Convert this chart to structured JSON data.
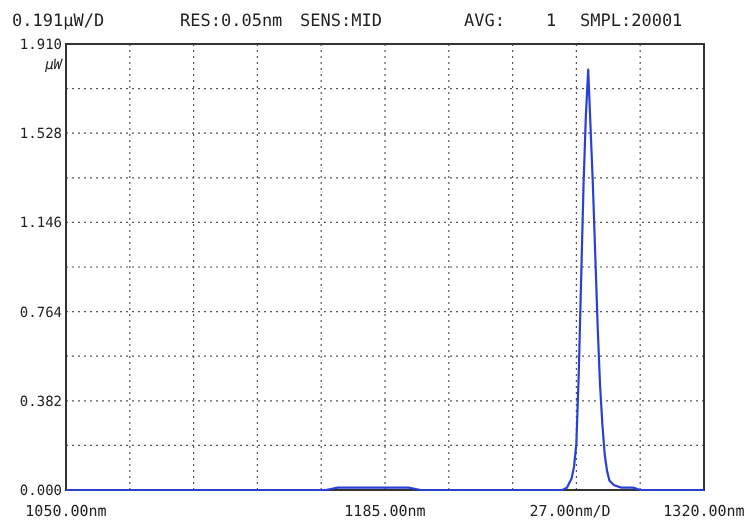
{
  "chart_data": {
    "type": "line",
    "ylabel": "µW",
    "xlabel": "27.00nm/D",
    "annotations": [
      "0.191µW/D",
      "RES:0.05nm",
      "SENS:MID",
      "AVG:    1",
      "SMPL:20001"
    ],
    "series": [
      {
        "color": "#2a3fd6",
        "x": [
          1050,
          1100,
          1150,
          1160,
          1165,
          1175,
          1185,
          1195,
          1200,
          1210,
          1250,
          1260,
          1262,
          1264,
          1265,
          1266,
          1267,
          1268,
          1269,
          1270,
          1271,
          1272,
          1273,
          1274,
          1275,
          1276,
          1277,
          1278,
          1279,
          1280,
          1282,
          1285,
          1290,
          1293,
          1300,
          1320
        ],
        "values": [
          0,
          0,
          0,
          0,
          0.01,
          0.01,
          0.01,
          0.01,
          0,
          0,
          0,
          0,
          0.01,
          0.05,
          0.1,
          0.2,
          0.5,
          0.9,
          1.3,
          1.6,
          1.8,
          1.55,
          1.3,
          1.0,
          0.7,
          0.45,
          0.28,
          0.15,
          0.08,
          0.04,
          0.02,
          0.01,
          0.01,
          0,
          0,
          0
        ]
      }
    ],
    "xlim": [
      1050,
      1320
    ],
    "xticks": [
      {
        "value": 1050,
        "label": "1050.00nm"
      },
      {
        "value": 1077,
        "label": null
      },
      {
        "value": 1104,
        "label": null
      },
      {
        "value": 1131,
        "label": null
      },
      {
        "value": 1158,
        "label": null
      },
      {
        "value": 1185,
        "label": "1185.00nm"
      },
      {
        "value": 1212,
        "label": null
      },
      {
        "value": 1239,
        "label": null
      },
      {
        "value": 1266,
        "label": null
      },
      {
        "value": 1293,
        "label": null
      },
      {
        "value": 1320,
        "label": "1320.00nm"
      }
    ],
    "ylim": [
      0,
      1.91
    ],
    "yticks": [
      {
        "value": 0,
        "label": "0.000"
      },
      {
        "value": 0.191,
        "label": null
      },
      {
        "value": 0.382,
        "label": "0.382"
      },
      {
        "value": 0.573,
        "label": null
      },
      {
        "value": 0.764,
        "label": "0.764"
      },
      {
        "value": 0.955,
        "label": null
      },
      {
        "value": 1.146,
        "label": "1.146"
      },
      {
        "value": 1.337,
        "label": null
      },
      {
        "value": 1.528,
        "label": "1.528"
      },
      {
        "value": 1.719,
        "label": null
      },
      {
        "value": 1.91,
        "label": "1.910"
      }
    ],
    "grid": true,
    "marker": "none",
    "line_style": "solid"
  }
}
